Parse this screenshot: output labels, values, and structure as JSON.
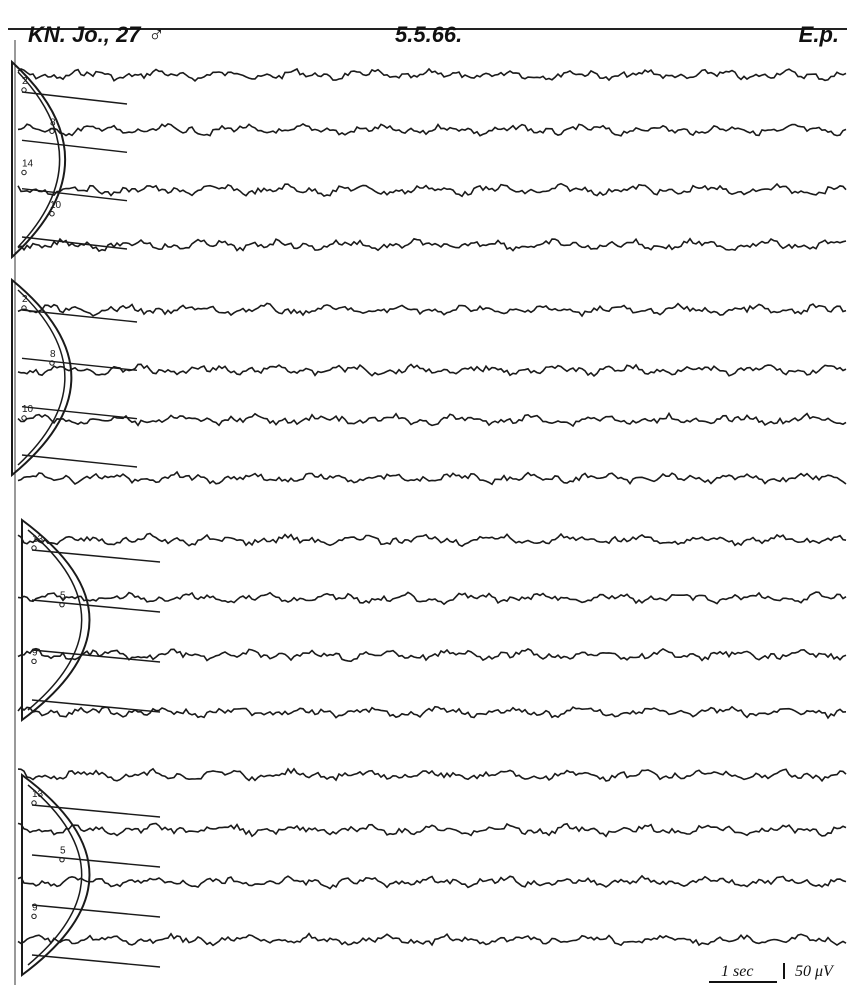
{
  "header": {
    "left_label": "KN. Jo., 27 ♂",
    "date_label": "5.5.66.",
    "right_label": "E.p."
  },
  "scale": {
    "time_label": "1 sec",
    "amplitude_label": "50 μV"
  },
  "head_diagrams": [
    {
      "electrode_labels": [
        "2",
        "8",
        "14",
        "10"
      ]
    },
    {
      "electrode_labels": [
        "2",
        "8",
        "10"
      ]
    },
    {
      "electrode_labels": [
        "13",
        "5",
        "9"
      ]
    },
    {
      "electrode_labels": [
        "13",
        "5",
        "9"
      ]
    }
  ],
  "ink_color": "#1a1a1a"
}
